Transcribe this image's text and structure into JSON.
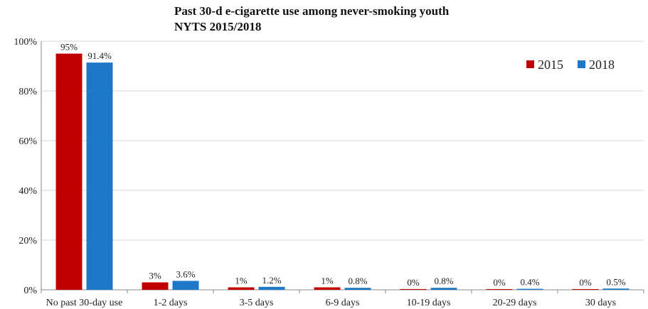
{
  "chart_data": {
    "type": "bar",
    "title_lines": [
      "Past 30-d e-cigarette use among never-smoking youth",
      "NYTS 2015/2018"
    ],
    "categories": [
      "No past 30-day use",
      "1-2 days",
      "3-5 days",
      "6-9 days",
      "10-19 days",
      "20-29 days",
      "30 days"
    ],
    "series": [
      {
        "name": "2015",
        "color": "#c00000",
        "values": [
          95,
          3,
          1,
          1,
          0.3,
          0.2,
          0.2
        ],
        "labels": [
          "95%",
          "3%",
          "1%",
          "1%",
          "0%",
          "0%",
          "0%"
        ]
      },
      {
        "name": "2018",
        "color": "#1f77c8",
        "values": [
          91.4,
          3.6,
          1.2,
          0.8,
          0.8,
          0.4,
          0.5
        ],
        "labels": [
          "91.4%",
          "3.6%",
          "1.2%",
          "0.8%",
          "0.8%",
          "0.4%",
          "0.5%"
        ]
      }
    ],
    "y_ticks": [
      "0%",
      "20%",
      "40%",
      "60%",
      "80%",
      "100%"
    ],
    "ylim": [
      0,
      100
    ],
    "grid": true,
    "legend_position": "top-right"
  }
}
